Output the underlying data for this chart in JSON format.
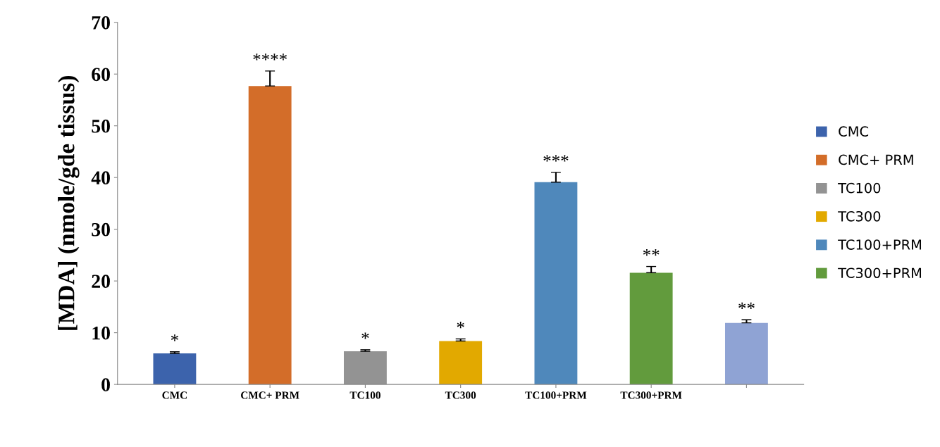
{
  "chart_data": {
    "type": "bar",
    "ylabel": "[MDA] (nmole/gde tissus)",
    "categories": [
      "CMC",
      "CMC+ PRM",
      "TC100",
      "TC300",
      "TC100+PRM",
      "TC300+PRM",
      null
    ],
    "series": [
      {
        "name": "CMC",
        "color": "#3c63ac",
        "values": [
          6.0,
          null,
          null,
          null,
          null,
          null,
          null
        ],
        "errors": [
          [
            6.0,
            6.3
          ],
          null,
          null,
          null,
          null,
          null,
          null
        ]
      },
      {
        "name": "CMC+ PRM",
        "color": "#d36d29",
        "values": [
          null,
          57.7,
          null,
          null,
          null,
          null,
          null
        ],
        "errors": [
          null,
          [
            57.7,
            60.6
          ],
          null,
          null,
          null,
          null,
          null
        ]
      },
      {
        "name": "TC100",
        "color": "#939393",
        "values": [
          null,
          null,
          6.4,
          null,
          null,
          null,
          null
        ],
        "errors": [
          null,
          null,
          [
            6.4,
            6.7
          ],
          null,
          null,
          null,
          null
        ]
      },
      {
        "name": "TC300",
        "color": "#e2a900",
        "values": [
          null,
          null,
          null,
          8.4,
          null,
          null,
          null
        ],
        "errors": [
          null,
          null,
          null,
          [
            8.4,
            8.8
          ],
          null,
          null,
          null
        ]
      },
      {
        "name": "TC100+PRM",
        "color": "#4f88bb",
        "values": [
          null,
          null,
          null,
          null,
          39.1,
          null,
          null
        ],
        "errors": [
          null,
          null,
          null,
          null,
          [
            39.1,
            41.0
          ],
          null,
          null
        ]
      },
      {
        "name": "TC300+PRM",
        "color": "#629b3d",
        "values": [
          null,
          null,
          null,
          null,
          null,
          21.6,
          null
        ],
        "errors": [
          null,
          null,
          null,
          null,
          null,
          [
            21.6,
            22.8
          ],
          null
        ]
      },
      {
        "color": "#8fa3d4",
        "values": [
          null,
          null,
          null,
          null,
          null,
          null,
          11.9
        ],
        "errors": [
          null,
          null,
          null,
          null,
          null,
          null,
          [
            11.9,
            12.5
          ]
        ]
      }
    ],
    "ylim": [
      0,
      70
    ],
    "yticks": [
      0,
      10,
      20,
      30,
      40,
      50,
      60,
      70
    ],
    "annotations": [
      "*",
      "****",
      "*",
      "*",
      "***",
      "**",
      "**"
    ],
    "legend": "right",
    "grid": false
  }
}
